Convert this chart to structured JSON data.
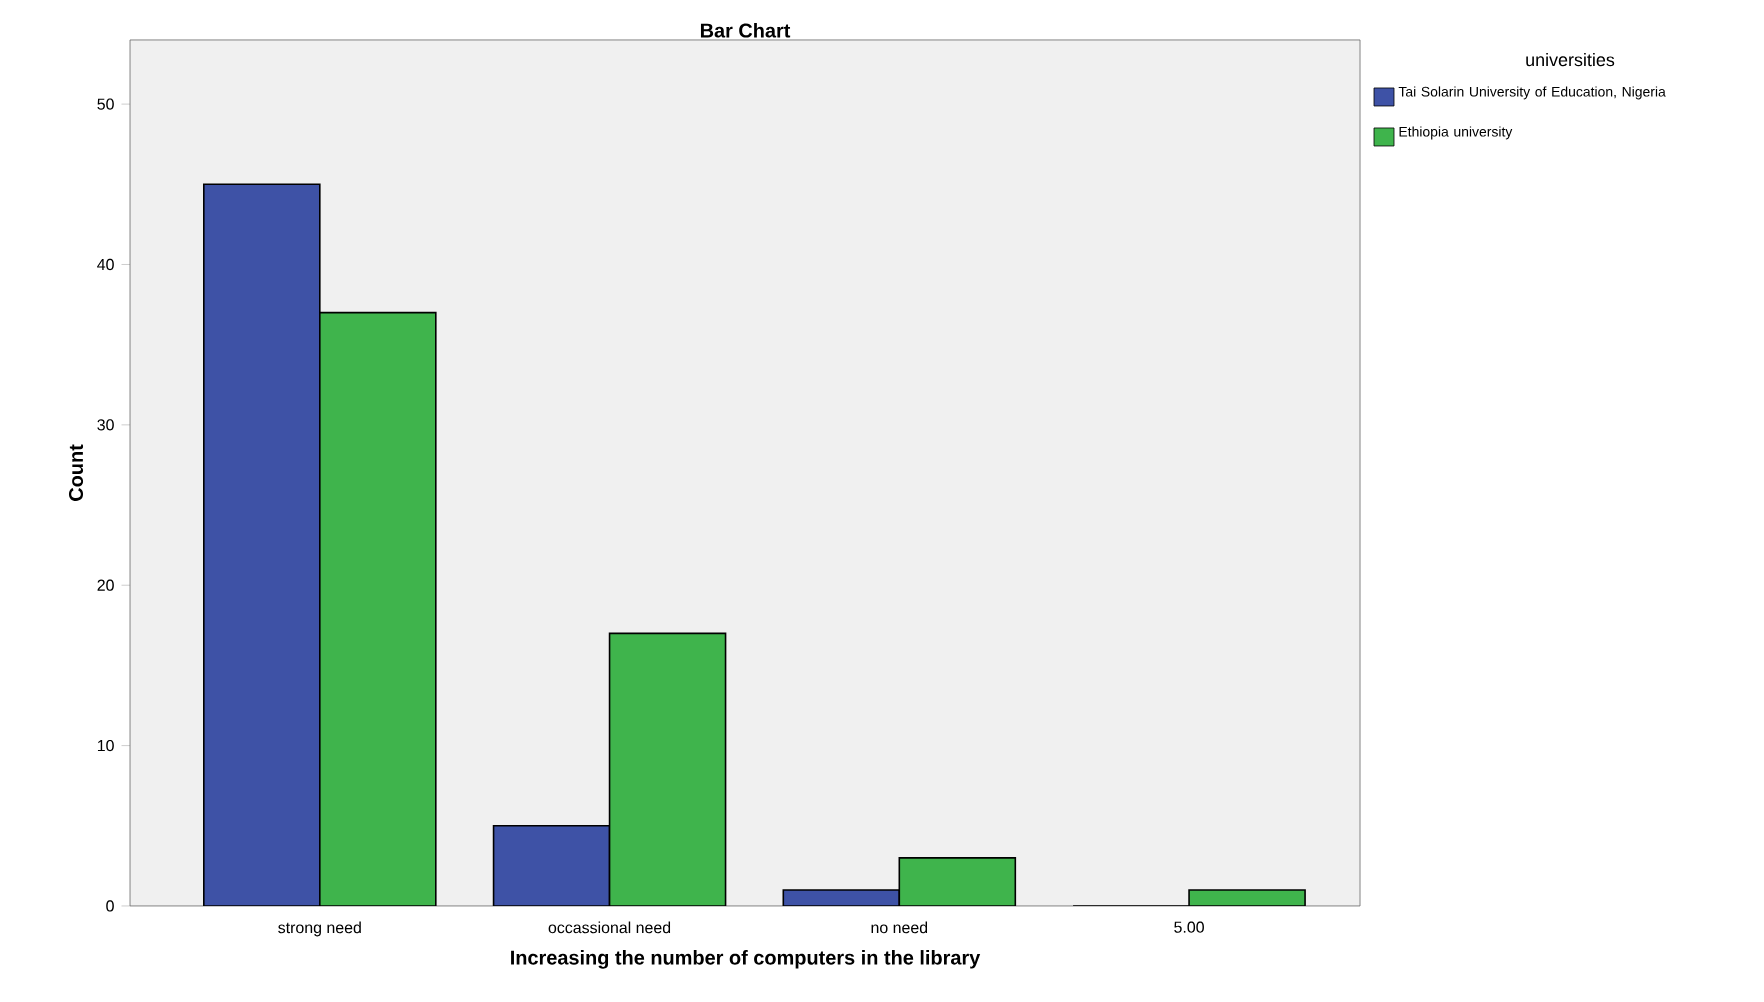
{
  "chart_data": {
    "type": "bar",
    "title": "Bar Chart",
    "xlabel": "Increasing the number of computers in the library",
    "ylabel": "Count",
    "legend_title": "universities",
    "categories": [
      "strong need",
      "occassional need",
      "no need",
      "5.00"
    ],
    "series": [
      {
        "name": "Tai Solarin University of Education, Nigeria",
        "color": "#3e52a6",
        "values": [
          45,
          5,
          1,
          0
        ]
      },
      {
        "name": "Ethiopia university",
        "color": "#3fb44c",
        "values": [
          37,
          17,
          3,
          1
        ]
      }
    ],
    "ylim": [
      0,
      54
    ],
    "yticks": [
      0,
      10,
      20,
      30,
      40,
      50
    ],
    "legend": "top right"
  }
}
